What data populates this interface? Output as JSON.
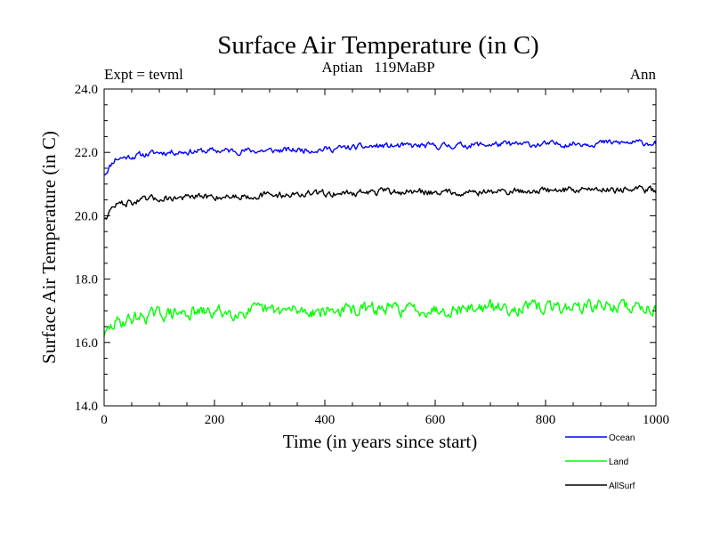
{
  "chart_data": {
    "type": "line",
    "title": "Surface Air Temperature (in C)",
    "subtitle": "Aptian   119MaBP",
    "left_label": "Expt = tevml",
    "right_label": "Ann",
    "xlabel": "Time (in years since start)",
    "ylabel": "Surface Air Temperature (in C)",
    "xlim": [
      0,
      1000
    ],
    "ylim": [
      14.0,
      24.0
    ],
    "xticks": [
      0,
      200,
      400,
      600,
      800,
      1000
    ],
    "xtick_labels": [
      "0",
      "200",
      "400",
      "600",
      "800",
      "1000"
    ],
    "yticks": [
      14.0,
      16.0,
      18.0,
      20.0,
      22.0,
      24.0
    ],
    "ytick_labels": [
      "14.0",
      "16.0",
      "18.0",
      "20.0",
      "22.0",
      "24.0"
    ],
    "grid": false,
    "legend_position": "bottom-right, below plot",
    "x_step": 2,
    "series": [
      {
        "name": "Ocean",
        "color": "#0000ff",
        "start": 21.3,
        "spinup": [
          [
            0,
            21.3
          ],
          [
            20,
            21.8
          ],
          [
            60,
            21.9
          ],
          [
            100,
            22.0
          ],
          [
            200,
            22.05
          ],
          [
            300,
            22.05
          ],
          [
            400,
            22.1
          ],
          [
            500,
            22.2
          ],
          [
            600,
            22.2
          ],
          [
            700,
            22.25
          ],
          [
            800,
            22.25
          ],
          [
            900,
            22.3
          ],
          [
            1000,
            22.3
          ]
        ],
        "noise_amplitude": 0.08,
        "seed": 11
      },
      {
        "name": "Land",
        "color": "#00ff00",
        "start": 16.2,
        "spinup": [
          [
            0,
            16.2
          ],
          [
            20,
            16.6
          ],
          [
            60,
            16.8
          ],
          [
            100,
            16.9
          ],
          [
            200,
            16.95
          ],
          [
            300,
            17.0
          ],
          [
            400,
            17.0
          ],
          [
            500,
            17.05
          ],
          [
            600,
            17.05
          ],
          [
            700,
            17.1
          ],
          [
            800,
            17.1
          ],
          [
            900,
            17.15
          ],
          [
            1000,
            17.1
          ]
        ],
        "noise_amplitude": 0.17,
        "seed": 29
      },
      {
        "name": "AllSurf",
        "color": "#000000",
        "start": 19.9,
        "spinup": [
          [
            0,
            19.9
          ],
          [
            20,
            20.35
          ],
          [
            60,
            20.45
          ],
          [
            100,
            20.55
          ],
          [
            200,
            20.6
          ],
          [
            300,
            20.65
          ],
          [
            400,
            20.7
          ],
          [
            500,
            20.75
          ],
          [
            600,
            20.75
          ],
          [
            700,
            20.75
          ],
          [
            800,
            20.8
          ],
          [
            900,
            20.85
          ],
          [
            1000,
            20.8
          ]
        ],
        "noise_amplitude": 0.09,
        "seed": 47
      }
    ]
  }
}
